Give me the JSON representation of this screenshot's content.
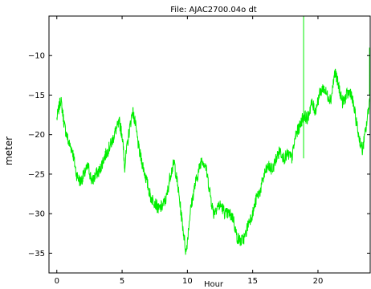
{
  "chart_data": {
    "type": "line",
    "title": "File: AJAC2700.04o   dt",
    "xlabel": "Hour",
    "ylabel": "meter",
    "xlim": [
      -0.6,
      24
    ],
    "ylim": [
      -37.5,
      -5
    ],
    "x_ticks": [
      0,
      5,
      10,
      15,
      20
    ],
    "y_ticks": [
      -35,
      -30,
      -25,
      -20,
      -15,
      -10
    ],
    "grid": false,
    "series": [
      {
        "color": "#00ee00",
        "x": [
          0.0,
          0.3,
          0.6,
          0.9,
          1.2,
          1.5,
          1.8,
          2.1,
          2.4,
          2.7,
          3.0,
          3.3,
          3.6,
          3.9,
          4.2,
          4.5,
          4.8,
          5.0,
          5.2,
          5.5,
          5.8,
          6.0,
          6.3,
          6.6,
          6.9,
          7.2,
          7.5,
          7.8,
          8.1,
          8.4,
          8.7,
          9.0,
          9.3,
          9.6,
          9.9,
          10.2,
          10.5,
          10.8,
          11.1,
          11.4,
          11.7,
          12.0,
          12.3,
          12.6,
          12.9,
          13.2,
          13.5,
          13.8,
          14.1,
          14.4,
          14.7,
          15.0,
          15.3,
          15.6,
          15.9,
          16.2,
          16.5,
          16.8,
          17.1,
          17.4,
          17.7,
          18.0,
          18.3,
          18.6,
          18.9,
          19.2,
          19.5,
          19.8,
          20.1,
          20.4,
          20.7,
          21.0,
          21.3,
          21.6,
          21.9,
          22.2,
          22.5,
          22.8,
          23.1,
          23.4,
          23.7,
          24.0
        ],
        "y": [
          -18,
          -15.5,
          -19,
          -21,
          -22,
          -25,
          -26,
          -25,
          -24,
          -26,
          -25,
          -24.5,
          -23,
          -22,
          -21,
          -19.5,
          -18.5,
          -20,
          -24,
          -20,
          -17,
          -18.5,
          -22,
          -24,
          -26,
          -28,
          -28.5,
          -29.5,
          -29,
          -28,
          -25,
          -23.5,
          -27,
          -31,
          -35,
          -30,
          -27,
          -25,
          -23,
          -24,
          -27,
          -30,
          -29,
          -29,
          -30,
          -30,
          -30.5,
          -33,
          -33.5,
          -33,
          -31,
          -30,
          -28,
          -27,
          -25,
          -24,
          -24.5,
          -23,
          -22,
          -23,
          -22.5,
          -23,
          -20,
          -19,
          -17.5,
          -18,
          -16,
          -17,
          -15,
          -14,
          -15,
          -15.5,
          -12,
          -14,
          -16,
          -15,
          -14.5,
          -17,
          -20,
          -22,
          -19,
          -15
        ]
      }
    ],
    "spikes": [
      {
        "x": 18.9,
        "y0": -23,
        "y1": -5
      },
      {
        "x": 23.95,
        "y0": -15,
        "y1": -9
      }
    ]
  }
}
